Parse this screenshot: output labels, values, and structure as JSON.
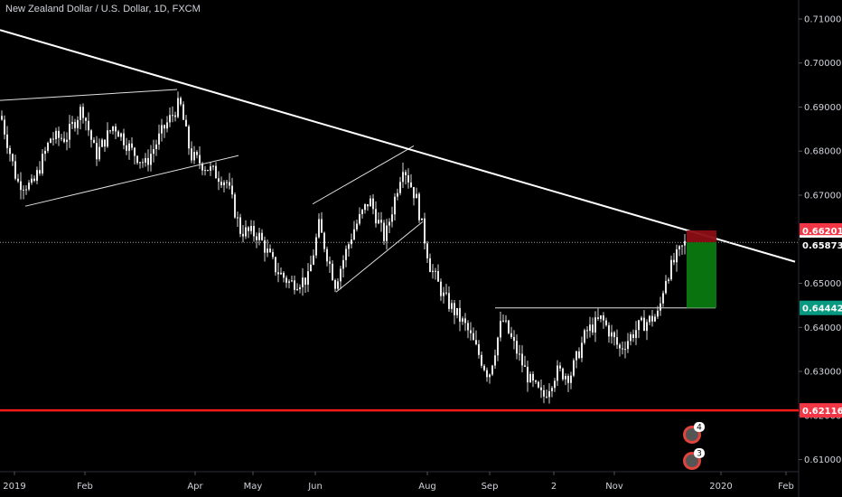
{
  "header": {
    "title": "New Zealand Dollar / U.S. Dollar, 1D, FXCM"
  },
  "chart_data": {
    "type": "candlestick",
    "symbol": "New Zealand Dollar / U.S. Dollar",
    "interval": "1D",
    "source": "FXCM",
    "ylim": [
      0.6015,
      0.7143
    ],
    "y_ticks": [
      "0.71000",
      "0.70000",
      "0.69000",
      "0.68000",
      "0.67000",
      "0.66000",
      "0.65000",
      "0.64000",
      "0.63000",
      "0.62000",
      "0.61000"
    ],
    "x_ticks": [
      "2019",
      "Feb",
      "Apr",
      "May",
      "Jun",
      "Aug",
      "Sep",
      "2",
      "Nov",
      "2020",
      "Feb"
    ],
    "price_path": [
      [
        0,
        0.688
      ],
      [
        18,
        0.673
      ],
      [
        35,
        0.672
      ],
      [
        55,
        0.683
      ],
      [
        72,
        0.683
      ],
      [
        90,
        0.69
      ],
      [
        105,
        0.679
      ],
      [
        125,
        0.686
      ],
      [
        145,
        0.68
      ],
      [
        160,
        0.677
      ],
      [
        180,
        0.685
      ],
      [
        198,
        0.691
      ],
      [
        210,
        0.679
      ],
      [
        230,
        0.676
      ],
      [
        250,
        0.673
      ],
      [
        265,
        0.662
      ],
      [
        285,
        0.661
      ],
      [
        305,
        0.653
      ],
      [
        320,
        0.65
      ],
      [
        340,
        0.651
      ],
      [
        352,
        0.663
      ],
      [
        370,
        0.65
      ],
      [
        390,
        0.662
      ],
      [
        408,
        0.669
      ],
      [
        425,
        0.66
      ],
      [
        445,
        0.677
      ],
      [
        460,
        0.669
      ],
      [
        475,
        0.654
      ],
      [
        490,
        0.647
      ],
      [
        515,
        0.64
      ],
      [
        540,
        0.629
      ],
      [
        555,
        0.642
      ],
      [
        570,
        0.635
      ],
      [
        585,
        0.628
      ],
      [
        600,
        0.624
      ],
      [
        615,
        0.63
      ],
      [
        630,
        0.629
      ],
      [
        648,
        0.639
      ],
      [
        665,
        0.642
      ],
      [
        685,
        0.635
      ],
      [
        705,
        0.64
      ],
      [
        728,
        0.643
      ],
      [
        735,
        0.651
      ],
      [
        748,
        0.656
      ],
      [
        758,
        0.6593
      ]
    ],
    "levels": [
      {
        "label": "0.66201",
        "value": 0.66201,
        "color": "#f23645"
      },
      {
        "label": "0.65929",
        "value": 0.65929,
        "color": "#ffffff"
      },
      {
        "label": "0.65873",
        "value": 0.65873,
        "color": "#000000"
      },
      {
        "label": "0.64442",
        "value": 0.64442,
        "color": "#089981"
      },
      {
        "label": "0.62116",
        "value": 0.62116,
        "color": "#f23645"
      }
    ],
    "position": {
      "entry": 0.65929,
      "stop": 0.66201,
      "target": 0.64442
    },
    "support_line": 0.64442,
    "horizontal_level": 0.62116,
    "trendline": [
      [
        0,
        0.7075
      ],
      [
        880,
        0.6549
      ]
    ],
    "triangle": [
      [
        [
          0,
          0.6915
        ],
        [
          196,
          0.694
        ]
      ],
      [
        [
          28,
          0.6675
        ],
        [
          264,
          0.679
        ]
      ]
    ],
    "rising_wedge": [
      [
        [
          346,
          0.668
        ],
        [
          458,
          0.6812
        ]
      ],
      [
        [
          372,
          0.648
        ],
        [
          468,
          0.664
        ]
      ]
    ],
    "event_badges": [
      "4",
      "3"
    ]
  }
}
